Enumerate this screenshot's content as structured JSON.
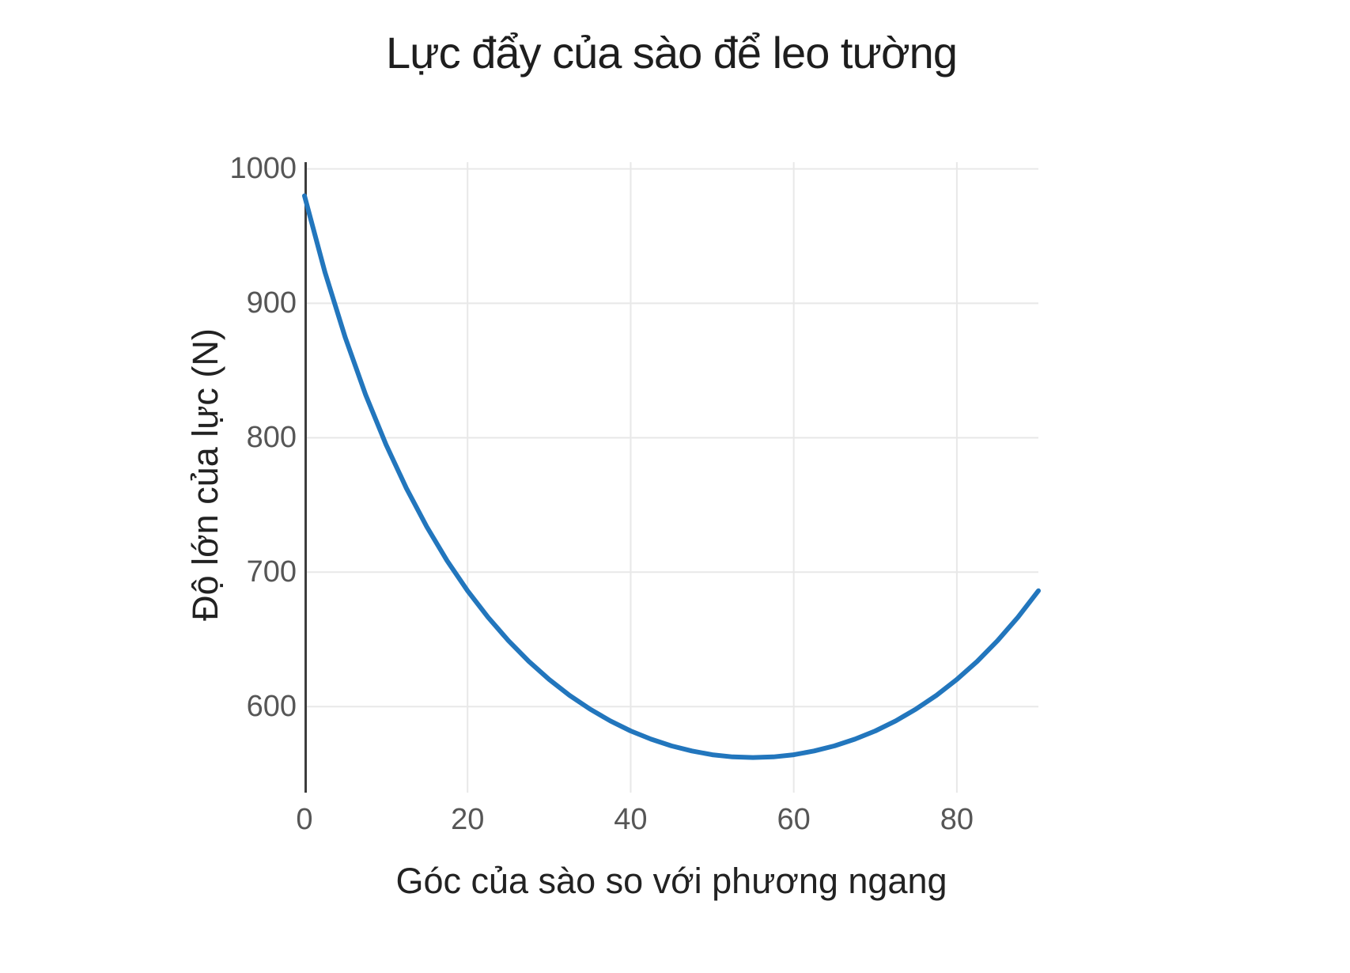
{
  "chart_data": {
    "type": "line",
    "title": "Lực đẩy của sào để leo tường",
    "xlabel": "Góc của sào so với phương ngang",
    "ylabel": "Độ lớn của lực (N)",
    "x": [
      0,
      2.5,
      5,
      7.5,
      10,
      12.5,
      15,
      17.5,
      20,
      22.5,
      25,
      27.5,
      30,
      32.5,
      35,
      37.5,
      40,
      42.5,
      45,
      47.5,
      50,
      52.5,
      55,
      57.5,
      60,
      62.5,
      65,
      67.5,
      70,
      72.5,
      75,
      77.5,
      80,
      82.5,
      85,
      87.5,
      90
    ],
    "y": [
      980.0,
      923.3,
      874.5,
      832.0,
      794.9,
      762.4,
      733.7,
      708.5,
      686.2,
      666.5,
      649.1,
      633.7,
      620.2,
      608.4,
      598.2,
      589.4,
      581.9,
      575.8,
      570.8,
      567.0,
      564.2,
      562.6,
      562.1,
      562.6,
      564.2,
      567.0,
      570.8,
      575.8,
      581.9,
      589.4,
      598.2,
      608.4,
      620.2,
      633.7,
      649.1,
      666.5,
      686.2
    ],
    "xticks": [
      0,
      20,
      40,
      60,
      80
    ],
    "yticks": [
      600,
      700,
      800,
      900,
      1000
    ],
    "xlim": [
      0,
      90
    ],
    "ylim": [
      536,
      1005
    ],
    "grid": true,
    "legend": false,
    "colors": {
      "line": "#2276bd",
      "grid": "#e8e8e8",
      "axis": "#3d3d3d",
      "tick_label": "#565656",
      "text": "#1e1e1e"
    }
  }
}
